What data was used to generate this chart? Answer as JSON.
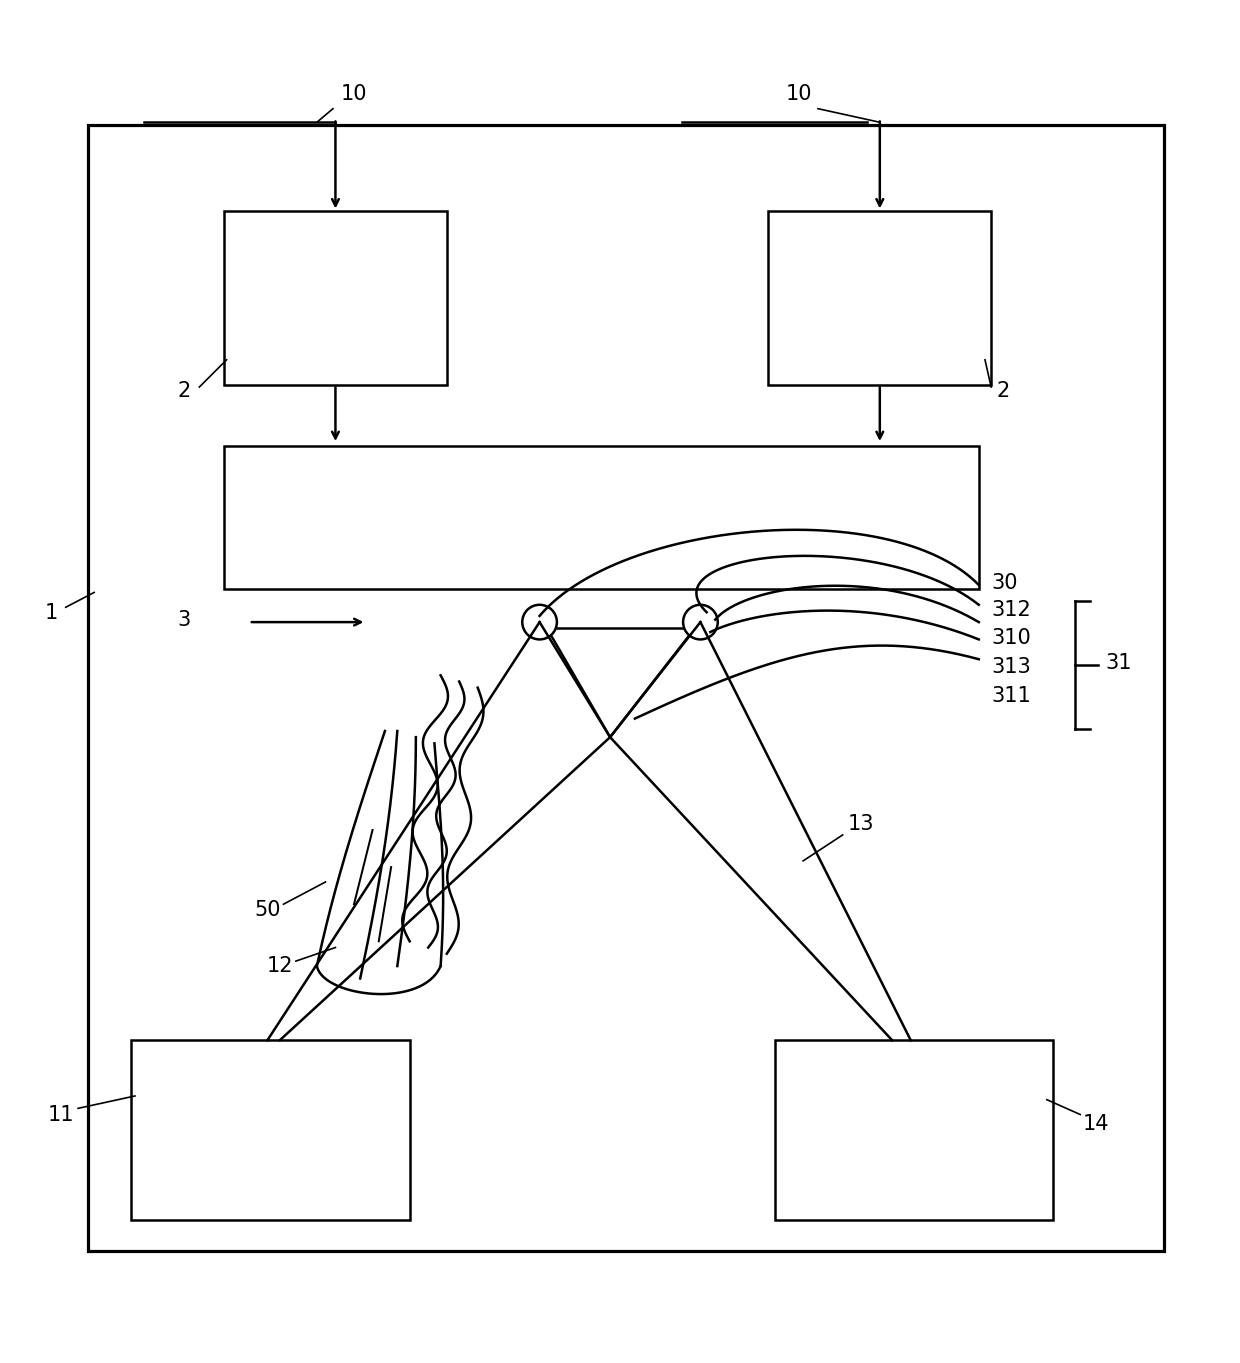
{
  "bg_color": "#ffffff",
  "line_color": "#000000",
  "fig_width": 12.4,
  "fig_height": 13.63,
  "dpi": 100
}
